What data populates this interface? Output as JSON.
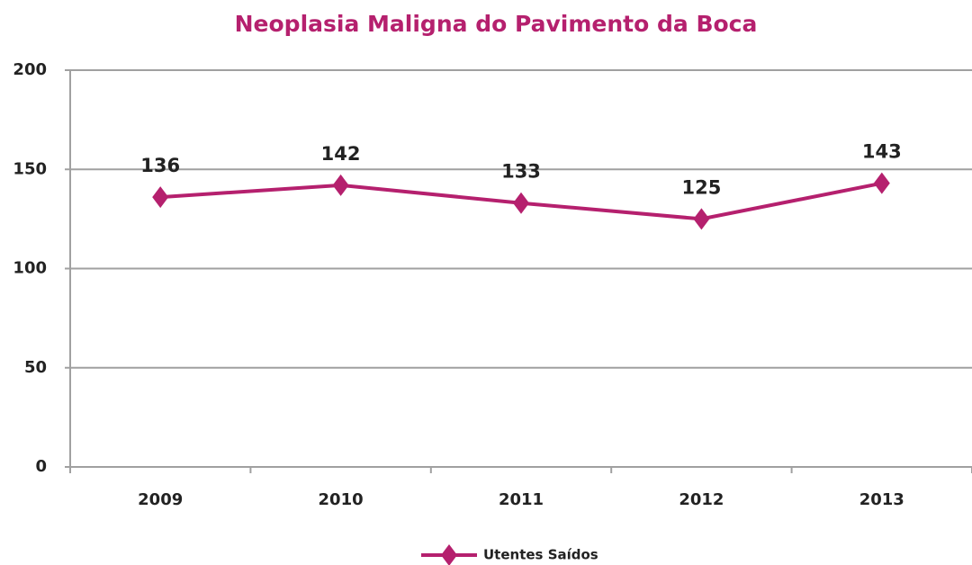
{
  "chart_data": {
    "type": "line",
    "title": "Neoplasia Maligna do Pavimento da Boca",
    "categories": [
      "2009",
      "2010",
      "2011",
      "2012",
      "2013"
    ],
    "series": [
      {
        "name": "Utentes Saídos",
        "color": "#b5206e",
        "values": [
          136,
          142,
          133,
          125,
          143
        ]
      }
    ],
    "ylim": [
      0,
      200
    ],
    "yticks": [
      0,
      50,
      100,
      150,
      200
    ],
    "grid": true,
    "legend": "bottom"
  }
}
